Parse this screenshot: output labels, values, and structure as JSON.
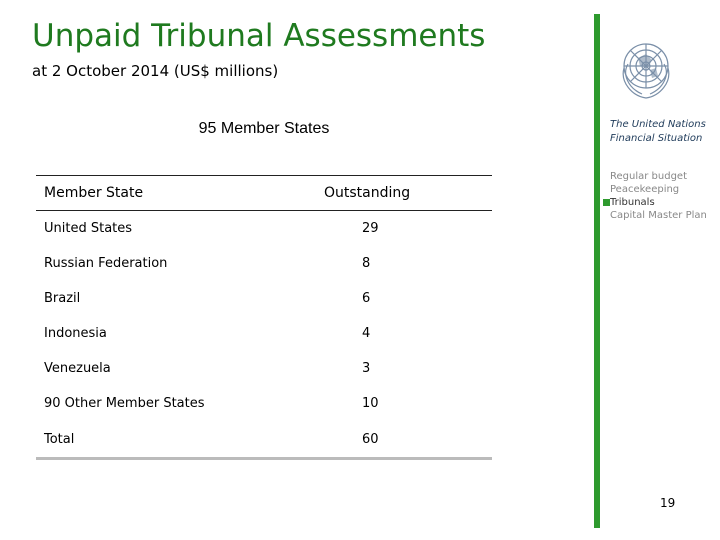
{
  "title": "Unpaid Tribunal Assessments",
  "subtitle": "at 2 October 2014 (US$ millions)",
  "table": {
    "heading": "95 Member States",
    "columns": [
      "Member State",
      "Outstanding"
    ],
    "rows": [
      {
        "state": "United States",
        "outstanding": "29"
      },
      {
        "state": "Russian Federation",
        "outstanding": "8"
      },
      {
        "state": "Brazil",
        "outstanding": "6"
      },
      {
        "state": "Indonesia",
        "outstanding": "4"
      },
      {
        "state": "Venezuela",
        "outstanding": "3"
      },
      {
        "state": "90 Other Member States",
        "outstanding": "10"
      }
    ],
    "total": {
      "label": "Total",
      "value": "60"
    }
  },
  "sidebar": {
    "logo_icon": "un-emblem-icon",
    "title_line1": "The United Nations",
    "title_line2": "Financial Situation",
    "items": [
      {
        "label": "Regular budget",
        "active": false
      },
      {
        "label": "Peacekeeping",
        "active": false
      },
      {
        "label": "Tribunals",
        "active": true
      },
      {
        "label": "Capital Master Plan",
        "active": false
      }
    ]
  },
  "page_number": "19",
  "colors": {
    "accent_green": "#2e9a2e",
    "title_green": "#1f7a1f"
  }
}
